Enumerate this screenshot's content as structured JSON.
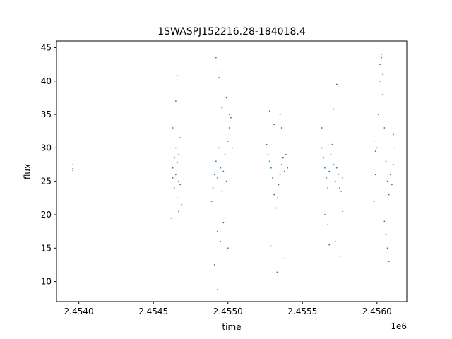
{
  "chart_data": {
    "type": "scatter",
    "title": "1SWASPJ152216.28-184018.4",
    "xlabel": "time",
    "ylabel": "flux",
    "x_offset_label": "1e6",
    "xlim": [
      2.45385,
      2.4562
    ],
    "ylim": [
      7,
      46
    ],
    "x_ticks": [
      2.454,
      2.4545,
      2.455,
      2.4555,
      2.456
    ],
    "x_tick_labels": [
      "2.4540",
      "2.4545",
      "2.4550",
      "2.4555",
      "2.4560"
    ],
    "y_ticks": [
      10,
      15,
      20,
      25,
      30,
      35,
      40,
      45
    ],
    "y_tick_labels": [
      "10",
      "15",
      "20",
      "25",
      "30",
      "35",
      "40",
      "45"
    ],
    "marker_color": "#1f77b4",
    "grid": false,
    "series": [
      {
        "values_xy": [
          [
            2.45396,
            27.5
          ],
          [
            2.45396,
            26.6
          ],
          [
            2.45396,
            26.9
          ],
          [
            2.45463,
            27.0
          ],
          [
            2.45463,
            25.5
          ],
          [
            2.45464,
            28.5
          ],
          [
            2.45464,
            24.0
          ],
          [
            2.45465,
            30.0
          ],
          [
            2.45465,
            26.0
          ],
          [
            2.45466,
            22.5
          ],
          [
            2.45466,
            27.8
          ],
          [
            2.45467,
            29.0
          ],
          [
            2.45467,
            25.0
          ],
          [
            2.45468,
            31.5
          ],
          [
            2.45468,
            24.5
          ],
          [
            2.45463,
            33.0
          ],
          [
            2.45465,
            37.0
          ],
          [
            2.45466,
            40.8
          ],
          [
            2.45464,
            21.0
          ],
          [
            2.45467,
            20.5
          ],
          [
            2.45462,
            19.5
          ],
          [
            2.45469,
            21.5
          ],
          [
            2.45489,
            22.0
          ],
          [
            2.4549,
            24.0
          ],
          [
            2.45491,
            26.0
          ],
          [
            2.45492,
            28.0
          ],
          [
            2.45493,
            25.5
          ],
          [
            2.45494,
            30.0
          ],
          [
            2.45495,
            27.0
          ],
          [
            2.45496,
            23.5
          ],
          [
            2.45497,
            26.5
          ],
          [
            2.45498,
            29.0
          ],
          [
            2.45499,
            25.0
          ],
          [
            2.455,
            31.0
          ],
          [
            2.45501,
            33.0
          ],
          [
            2.45502,
            34.5
          ],
          [
            2.45503,
            30.0
          ],
          [
            2.45492,
            43.5
          ],
          [
            2.45494,
            40.5
          ],
          [
            2.45496,
            36.0
          ],
          [
            2.45493,
            17.5
          ],
          [
            2.45495,
            16.0
          ],
          [
            2.45491,
            12.5
          ],
          [
            2.45493,
            8.8
          ],
          [
            2.45497,
            18.8
          ],
          [
            2.45498,
            19.5
          ],
          [
            2.455,
            15.0
          ],
          [
            2.45501,
            35.0
          ],
          [
            2.45499,
            37.5
          ],
          [
            2.45496,
            41.5
          ],
          [
            2.45526,
            30.5
          ],
          [
            2.45527,
            29.0
          ],
          [
            2.45528,
            28.0
          ],
          [
            2.45529,
            27.0
          ],
          [
            2.4553,
            25.5
          ],
          [
            2.45531,
            23.0
          ],
          [
            2.45532,
            21.0
          ],
          [
            2.45533,
            22.5
          ],
          [
            2.45534,
            24.5
          ],
          [
            2.45535,
            26.0
          ],
          [
            2.45536,
            27.5
          ],
          [
            2.45537,
            28.5
          ],
          [
            2.45538,
            26.5
          ],
          [
            2.45539,
            29.0
          ],
          [
            2.4554,
            27.0
          ],
          [
            2.45528,
            35.5
          ],
          [
            2.45535,
            35.0
          ],
          [
            2.45529,
            15.3
          ],
          [
            2.45533,
            11.4
          ],
          [
            2.45538,
            13.5
          ],
          [
            2.45536,
            33.0
          ],
          [
            2.45531,
            33.5
          ],
          [
            2.45563,
            30.0
          ],
          [
            2.45564,
            28.5
          ],
          [
            2.45565,
            27.0
          ],
          [
            2.45566,
            25.5
          ],
          [
            2.45567,
            24.0
          ],
          [
            2.45568,
            26.5
          ],
          [
            2.45569,
            29.0
          ],
          [
            2.4557,
            30.5
          ],
          [
            2.45571,
            27.5
          ],
          [
            2.45572,
            25.0
          ],
          [
            2.45573,
            27.0
          ],
          [
            2.45574,
            26.0
          ],
          [
            2.45575,
            24.0
          ],
          [
            2.45576,
            23.5
          ],
          [
            2.45577,
            25.5
          ],
          [
            2.45563,
            33.0
          ],
          [
            2.45571,
            35.8
          ],
          [
            2.45573,
            39.5
          ],
          [
            2.45565,
            20.0
          ],
          [
            2.45567,
            18.5
          ],
          [
            2.45568,
            15.5
          ],
          [
            2.45575,
            13.8
          ],
          [
            2.45572,
            16.0
          ],
          [
            2.45577,
            20.5
          ],
          [
            2.45598,
            22.0
          ],
          [
            2.45599,
            26.0
          ],
          [
            2.456,
            30.0
          ],
          [
            2.45601,
            35.0
          ],
          [
            2.45602,
            40.0
          ],
          [
            2.45603,
            43.5
          ],
          [
            2.45604,
            38.0
          ],
          [
            2.45605,
            33.0
          ],
          [
            2.45606,
            28.0
          ],
          [
            2.45607,
            25.0
          ],
          [
            2.45608,
            23.0
          ],
          [
            2.45609,
            26.0
          ],
          [
            2.4561,
            24.5
          ],
          [
            2.45611,
            27.5
          ],
          [
            2.45612,
            30.0
          ],
          [
            2.45603,
            44.0
          ],
          [
            2.45602,
            42.5
          ],
          [
            2.45604,
            41.0
          ],
          [
            2.45606,
            17.0
          ],
          [
            2.45607,
            15.0
          ],
          [
            2.45608,
            13.0
          ],
          [
            2.45605,
            19.0
          ],
          [
            2.45598,
            31.0
          ],
          [
            2.45599,
            29.5
          ],
          [
            2.45611,
            32.0
          ]
        ]
      }
    ]
  }
}
